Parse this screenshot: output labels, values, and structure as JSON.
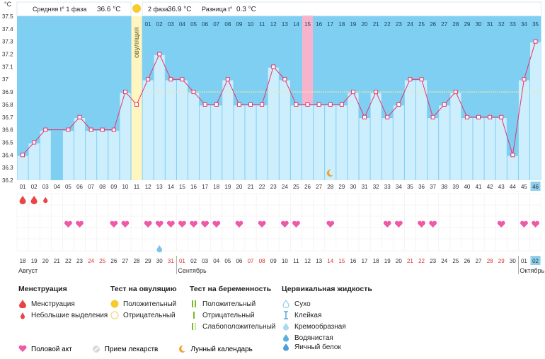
{
  "header": {
    "phase1_label": "Средняя t° 1 фаза",
    "phase1_value": "36.6 °C",
    "phase2_label": "2 фаза",
    "phase2_value": "36.9 °C",
    "diff_label": "Разница t°",
    "diff_value": "0.3 °C",
    "unit": "°C",
    "ovulation_label": "овуляция"
  },
  "chart_data": {
    "type": "line",
    "days": [
      "01",
      "02",
      "03",
      "04",
      "05",
      "06",
      "07",
      "08",
      "09",
      "10",
      "11",
      "12",
      "13",
      "14",
      "15",
      "16",
      "17",
      "18",
      "19",
      "20",
      "21",
      "22",
      "23",
      "24",
      "25",
      "26",
      "27",
      "28",
      "29",
      "30",
      "31",
      "32",
      "33",
      "34",
      "35",
      "36",
      "37",
      "38",
      "39",
      "40",
      "41",
      "42",
      "43",
      "44",
      "45",
      "46"
    ],
    "temps": [
      36.4,
      36.5,
      36.6,
      null,
      36.6,
      36.7,
      36.6,
      36.6,
      36.6,
      36.9,
      36.8,
      37.0,
      37.2,
      37.0,
      37.0,
      36.9,
      36.8,
      36.8,
      37.0,
      36.8,
      36.8,
      36.8,
      37.1,
      37.0,
      36.8,
      36.8,
      36.8,
      36.8,
      36.8,
      36.9,
      36.7,
      36.9,
      36.7,
      36.8,
      37.0,
      37.0,
      36.7,
      36.8,
      36.9,
      36.7,
      36.7,
      36.7,
      36.7,
      36.4,
      37.0,
      37.3
    ],
    "ylim": [
      36.2,
      37.5
    ],
    "yticks": [
      "37.5",
      "37.4",
      "37.3",
      "37.2",
      "37.1",
      "37",
      "36.9",
      "36.8",
      "36.7",
      "36.6",
      "36.5",
      "36.4",
      "36.3",
      "36.2"
    ],
    "coverline": 36.9,
    "ovulation_day": 11,
    "highlight_day": 26,
    "top_day_labels": [
      "01",
      "02",
      "03",
      "04",
      "05",
      "06",
      "07",
      "08",
      "09",
      "10",
      "11",
      "12",
      "13",
      "14",
      "15",
      "16",
      "17",
      "18",
      "19",
      "20",
      "21",
      "22",
      "23",
      "24",
      "25",
      "26",
      "27",
      "28",
      "29",
      "30",
      "31",
      "32",
      "33",
      "34",
      "35"
    ],
    "highlight_top_day": 15,
    "last_cycle_day": 46,
    "menstruation_days": [
      1,
      2,
      3
    ],
    "menstruation_sizes": [
      "big",
      "big",
      "small"
    ],
    "intercourse_days": [
      5,
      6,
      9,
      10,
      12,
      13,
      14,
      15,
      16,
      17,
      18,
      20,
      22,
      24,
      25,
      28,
      33,
      34,
      36,
      37,
      43,
      45,
      46
    ],
    "cervical_fluid_days": [
      13
    ],
    "lunar_day": 28,
    "dates": [
      "18",
      "19",
      "20",
      "21",
      "22",
      "23",
      "24",
      "25",
      "26",
      "27",
      "28",
      "29",
      "30",
      "31",
      "01",
      "02",
      "03",
      "04",
      "05",
      "06",
      "07",
      "08",
      "09",
      "10",
      "11",
      "12",
      "13",
      "14",
      "15",
      "16",
      "17",
      "18",
      "19",
      "20",
      "21",
      "22",
      "23",
      "24",
      "25",
      "26",
      "27",
      "28",
      "29",
      "30",
      "01",
      "02"
    ],
    "red_dates": [
      6,
      7,
      13,
      14,
      20,
      21,
      27,
      28,
      34,
      35,
      41,
      42
    ],
    "highlight_date_index": 45,
    "month_labels": [
      {
        "label": "Август",
        "start": 0
      },
      {
        "label": "Сентябрь",
        "start": 14
      },
      {
        "label": "Октябрь",
        "start": 44
      }
    ]
  },
  "legend": {
    "menstruation": {
      "title": "Менструация",
      "items": [
        "Менструация",
        "Небольшие выделения"
      ]
    },
    "ovulation_test": {
      "title": "Тест на овуляцию",
      "items": [
        "Положительный",
        "Отрицательный"
      ]
    },
    "pregnancy_test": {
      "title": "Тест на беременность",
      "items": [
        "Положительный",
        "Отрицательный",
        "Слабоположительный"
      ]
    },
    "cervical_fluid": {
      "title": "Цервикальная жидкость",
      "items": [
        "Сухо",
        "Клейкая",
        "Кремообразная",
        "Водянистая",
        "Яичный белок"
      ]
    },
    "bottom": [
      "Половой акт",
      "Прием лекарств",
      "Лунный календарь"
    ]
  },
  "colors": {
    "bar": "#cdeefc",
    "bar_top": "#6cc6ee",
    "sky": "#7fcff2",
    "line": "#e8336b",
    "ovulation": "#fff5c0",
    "highlight": "#f8b3cc",
    "heart": "#ee5aa8",
    "drop": "#e94545",
    "red_date": "#d9332e"
  }
}
